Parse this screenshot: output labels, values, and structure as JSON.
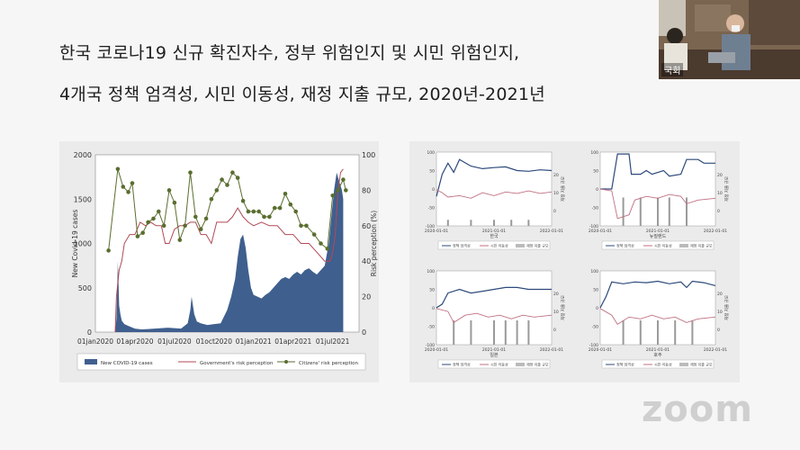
{
  "slide": {
    "title_line1": "한국 코로나19 신규 확진자수, 정부 위험인지 및 시민 위험인지,",
    "title_line2": "4개국 정책 엄격성, 시민 이동성, 재정 지출 규모, 2020년-2021년"
  },
  "video": {
    "name_label": "국회"
  },
  "zoom": {
    "logo": "zoom"
  },
  "chart_data": [
    {
      "type": "bar",
      "ylabel": "New Covid-19 cases",
      "y2label": "Risk perception (%)",
      "ylim": [
        0,
        2000
      ],
      "y2lim": [
        0,
        100
      ],
      "yticks": [
        "2000",
        "1500",
        "1000",
        "500",
        "0"
      ],
      "y2ticks": [
        "100",
        "80",
        "60",
        "40",
        "20",
        "0"
      ],
      "xticks": [
        "01jan2020",
        "01apr2020",
        "01jul2020",
        "01oct2020",
        "01jan2021",
        "01apr2021",
        "01jul2021"
      ],
      "xlim_months": [
        0,
        20
      ],
      "colors": {
        "bars": "#3f5f8e",
        "gov": "#b04a55",
        "citizen": "#5a6e2f"
      },
      "legend": [
        "New COVID-19 cases",
        "Government's risk perception",
        "Citizens' risk perception"
      ],
      "cases": [
        [
          1.5,
          0
        ],
        [
          1.6,
          150
        ],
        [
          1.65,
          450
        ],
        [
          1.7,
          800
        ],
        [
          1.75,
          600
        ],
        [
          1.8,
          300
        ],
        [
          1.9,
          200
        ],
        [
          2.0,
          130
        ],
        [
          2.2,
          90
        ],
        [
          2.5,
          70
        ],
        [
          3.0,
          40
        ],
        [
          3.5,
          30
        ],
        [
          4.0,
          35
        ],
        [
          4.5,
          40
        ],
        [
          5.0,
          45
        ],
        [
          5.5,
          50
        ],
        [
          6.0,
          45
        ],
        [
          6.5,
          40
        ],
        [
          7.0,
          100
        ],
        [
          7.2,
          250
        ],
        [
          7.3,
          400
        ],
        [
          7.4,
          300
        ],
        [
          7.5,
          200
        ],
        [
          7.7,
          120
        ],
        [
          8.0,
          100
        ],
        [
          8.5,
          80
        ],
        [
          9.0,
          90
        ],
        [
          9.5,
          100
        ],
        [
          10.0,
          250
        ],
        [
          10.3,
          400
        ],
        [
          10.6,
          600
        ],
        [
          10.8,
          850
        ],
        [
          11.0,
          1050
        ],
        [
          11.2,
          1100
        ],
        [
          11.4,
          950
        ],
        [
          11.6,
          700
        ],
        [
          11.8,
          500
        ],
        [
          12.0,
          420
        ],
        [
          12.3,
          400
        ],
        [
          12.6,
          380
        ],
        [
          12.9,
          420
        ],
        [
          13.2,
          450
        ],
        [
          13.5,
          500
        ],
        [
          13.8,
          550
        ],
        [
          14.1,
          600
        ],
        [
          14.4,
          620
        ],
        [
          14.7,
          600
        ],
        [
          15.0,
          650
        ],
        [
          15.3,
          680
        ],
        [
          15.6,
          650
        ],
        [
          15.9,
          700
        ],
        [
          16.2,
          720
        ],
        [
          16.5,
          680
        ],
        [
          16.8,
          650
        ],
        [
          17.1,
          700
        ],
        [
          17.4,
          750
        ],
        [
          17.7,
          1000
        ],
        [
          17.9,
          1300
        ],
        [
          18.1,
          1600
        ],
        [
          18.3,
          1800
        ],
        [
          18.5,
          1700
        ],
        [
          18.7,
          1600
        ],
        [
          18.8,
          1500
        ]
      ],
      "government": [
        [
          1.5,
          0
        ],
        [
          1.6,
          20
        ],
        [
          1.8,
          35
        ],
        [
          2.0,
          40
        ],
        [
          2.2,
          50
        ],
        [
          2.6,
          55
        ],
        [
          3.0,
          55
        ],
        [
          3.4,
          62
        ],
        [
          3.8,
          60
        ],
        [
          4.2,
          62
        ],
        [
          4.6,
          60
        ],
        [
          5.0,
          60
        ],
        [
          5.3,
          50
        ],
        [
          5.6,
          50
        ],
        [
          6.0,
          58
        ],
        [
          6.4,
          60
        ],
        [
          6.8,
          60
        ],
        [
          7.2,
          62
        ],
        [
          7.6,
          62
        ],
        [
          8.0,
          55
        ],
        [
          8.4,
          55
        ],
        [
          8.8,
          50
        ],
        [
          9.2,
          62
        ],
        [
          9.6,
          62
        ],
        [
          10.0,
          62
        ],
        [
          10.4,
          65
        ],
        [
          10.8,
          70
        ],
        [
          11.2,
          65
        ],
        [
          11.6,
          62
        ],
        [
          12.0,
          60
        ],
        [
          12.6,
          62
        ],
        [
          13.2,
          60
        ],
        [
          13.8,
          60
        ],
        [
          14.4,
          55
        ],
        [
          15.0,
          55
        ],
        [
          15.6,
          50
        ],
        [
          16.2,
          50
        ],
        [
          16.8,
          45
        ],
        [
          17.4,
          40
        ],
        [
          17.8,
          40
        ],
        [
          18.0,
          45
        ],
        [
          18.2,
          55
        ],
        [
          18.4,
          80
        ],
        [
          18.6,
          90
        ],
        [
          18.8,
          92
        ]
      ],
      "citizens": [
        [
          1.0,
          46
        ],
        [
          1.7,
          92
        ],
        [
          2.1,
          82
        ],
        [
          2.5,
          79
        ],
        [
          2.8,
          84
        ],
        [
          3.2,
          54
        ],
        [
          3.6,
          56
        ],
        [
          4.0,
          62
        ],
        [
          4.4,
          64
        ],
        [
          4.8,
          68
        ],
        [
          5.2,
          60
        ],
        [
          5.6,
          80
        ],
        [
          6.0,
          73
        ],
        [
          6.4,
          52
        ],
        [
          6.8,
          60
        ],
        [
          7.2,
          90
        ],
        [
          7.6,
          65
        ],
        [
          8.0,
          58
        ],
        [
          8.4,
          64
        ],
        [
          8.8,
          75
        ],
        [
          9.2,
          80
        ],
        [
          9.6,
          86
        ],
        [
          10.0,
          83
        ],
        [
          10.4,
          90
        ],
        [
          10.8,
          87
        ],
        [
          11.2,
          74
        ],
        [
          11.6,
          68
        ],
        [
          12.0,
          68
        ],
        [
          12.4,
          68
        ],
        [
          12.8,
          65
        ],
        [
          13.2,
          65
        ],
        [
          13.6,
          70
        ],
        [
          14.0,
          70
        ],
        [
          14.4,
          78
        ],
        [
          14.8,
          72
        ],
        [
          15.2,
          68
        ],
        [
          15.6,
          60
        ],
        [
          16.0,
          60
        ],
        [
          16.6,
          55
        ],
        [
          17.1,
          50
        ],
        [
          17.6,
          47
        ],
        [
          18.0,
          77
        ],
        [
          18.4,
          80
        ],
        [
          18.8,
          86
        ],
        [
          19.0,
          80
        ]
      ]
    },
    {
      "type": "line",
      "country": "한국",
      "xticks": [
        "2020-01-01",
        "2021-01-01",
        "2022-01-01"
      ],
      "yticks": [
        "100",
        "50",
        "0",
        "-50",
        "-100"
      ],
      "y2ticks": [
        "20",
        "10",
        "0"
      ],
      "y2label": "재정 지출 규모",
      "legend": [
        "정책 엄격성",
        "시민 이동성",
        "재정 지출 규모"
      ],
      "stringency": [
        [
          0,
          -20
        ],
        [
          0.05,
          40
        ],
        [
          0.1,
          70
        ],
        [
          0.15,
          45
        ],
        [
          0.2,
          80
        ],
        [
          0.3,
          62
        ],
        [
          0.4,
          55
        ],
        [
          0.5,
          58
        ],
        [
          0.6,
          60
        ],
        [
          0.7,
          50
        ],
        [
          0.8,
          48
        ],
        [
          0.9,
          52
        ],
        [
          1.0,
          50
        ]
      ],
      "mobility": [
        [
          0,
          -2
        ],
        [
          0.05,
          -10
        ],
        [
          0.1,
          -22
        ],
        [
          0.2,
          -18
        ],
        [
          0.3,
          -25
        ],
        [
          0.4,
          -10
        ],
        [
          0.5,
          -18
        ],
        [
          0.6,
          -8
        ],
        [
          0.7,
          -12
        ],
        [
          0.8,
          -5
        ],
        [
          0.9,
          -12
        ],
        [
          1.0,
          -8
        ]
      ],
      "spending": [
        [
          0.1,
          3
        ],
        [
          0.3,
          3
        ],
        [
          0.5,
          3
        ],
        [
          0.65,
          3
        ],
        [
          0.8,
          3
        ]
      ]
    },
    {
      "type": "line",
      "country": "뉴질랜드",
      "xticks": [
        "2020-01-01",
        "2021-01-01",
        "2022-01-01"
      ],
      "yticks": [
        "100",
        "50",
        "0",
        "-50",
        "-100"
      ],
      "y2ticks": [
        "20",
        "10",
        "0"
      ],
      "y2label": "재정 지출 규모",
      "legend": [
        "정책 엄격성",
        "시민 이동성",
        "재정 지출 규모"
      ],
      "stringency": [
        [
          0,
          0
        ],
        [
          0.1,
          0
        ],
        [
          0.15,
          95
        ],
        [
          0.25,
          95
        ],
        [
          0.27,
          40
        ],
        [
          0.35,
          40
        ],
        [
          0.4,
          50
        ],
        [
          0.45,
          40
        ],
        [
          0.55,
          50
        ],
        [
          0.6,
          35
        ],
        [
          0.7,
          40
        ],
        [
          0.75,
          80
        ],
        [
          0.85,
          80
        ],
        [
          0.9,
          70
        ],
        [
          1.0,
          70
        ]
      ],
      "mobility": [
        [
          0,
          0
        ],
        [
          0.1,
          -5
        ],
        [
          0.15,
          -80
        ],
        [
          0.25,
          -70
        ],
        [
          0.3,
          -30
        ],
        [
          0.4,
          -20
        ],
        [
          0.5,
          -25
        ],
        [
          0.6,
          -15
        ],
        [
          0.7,
          -20
        ],
        [
          0.75,
          -40
        ],
        [
          0.85,
          -30
        ],
        [
          1.0,
          -25
        ]
      ],
      "spending": [
        [
          0.2,
          14
        ],
        [
          0.35,
          14
        ],
        [
          0.5,
          14
        ],
        [
          0.6,
          14
        ],
        [
          0.75,
          14
        ]
      ]
    },
    {
      "type": "line",
      "country": "일본",
      "xticks": [
        "2020-01-01",
        "2021-01-01",
        "2022-01-01"
      ],
      "yticks": [
        "100",
        "50",
        "0",
        "-50",
        "-100"
      ],
      "y2ticks": [
        "20",
        "10",
        "0"
      ],
      "y2label": "재정 지출 규모",
      "legend": [
        "정책 엄격성",
        "시민 이동성",
        "재정 지출 규모"
      ],
      "stringency": [
        [
          0,
          0
        ],
        [
          0.05,
          10
        ],
        [
          0.1,
          40
        ],
        [
          0.2,
          50
        ],
        [
          0.3,
          40
        ],
        [
          0.4,
          45
        ],
        [
          0.5,
          50
        ],
        [
          0.6,
          55
        ],
        [
          0.7,
          55
        ],
        [
          0.8,
          50
        ],
        [
          1.0,
          50
        ]
      ],
      "mobility": [
        [
          0,
          -2
        ],
        [
          0.1,
          -10
        ],
        [
          0.15,
          -40
        ],
        [
          0.25,
          -20
        ],
        [
          0.35,
          -15
        ],
        [
          0.45,
          -25
        ],
        [
          0.55,
          -20
        ],
        [
          0.65,
          -30
        ],
        [
          0.75,
          -20
        ],
        [
          0.85,
          -25
        ],
        [
          1.0,
          -20
        ]
      ],
      "spending": [
        [
          0.15,
          12
        ],
        [
          0.3,
          12
        ],
        [
          0.5,
          12
        ],
        [
          0.6,
          12
        ],
        [
          0.7,
          12
        ],
        [
          0.8,
          12
        ]
      ]
    },
    {
      "type": "line",
      "country": "호주",
      "xticks": [
        "2020-01-01",
        "2021-01-01",
        "2022-01-01"
      ],
      "yticks": [
        "100",
        "50",
        "0",
        "-50",
        "-100"
      ],
      "y2ticks": [
        "20",
        "10",
        "0"
      ],
      "y2label": "재정 지출 규모",
      "legend": [
        "정책 엄격성",
        "시민 이동성",
        "재정 지출 규모"
      ],
      "stringency": [
        [
          0,
          0
        ],
        [
          0.05,
          30
        ],
        [
          0.1,
          70
        ],
        [
          0.2,
          65
        ],
        [
          0.3,
          70
        ],
        [
          0.4,
          68
        ],
        [
          0.5,
          72
        ],
        [
          0.6,
          65
        ],
        [
          0.7,
          70
        ],
        [
          0.75,
          55
        ],
        [
          0.8,
          72
        ],
        [
          0.9,
          68
        ],
        [
          1.0,
          60
        ]
      ],
      "mobility": [
        [
          0,
          -2
        ],
        [
          0.1,
          -20
        ],
        [
          0.15,
          -45
        ],
        [
          0.25,
          -25
        ],
        [
          0.35,
          -30
        ],
        [
          0.45,
          -20
        ],
        [
          0.55,
          -30
        ],
        [
          0.65,
          -25
        ],
        [
          0.75,
          -40
        ],
        [
          0.85,
          -30
        ],
        [
          1.0,
          -25
        ]
      ],
      "spending": [
        [
          0.2,
          12
        ],
        [
          0.35,
          12
        ],
        [
          0.5,
          12
        ],
        [
          0.65,
          12
        ],
        [
          0.8,
          12
        ]
      ]
    }
  ]
}
